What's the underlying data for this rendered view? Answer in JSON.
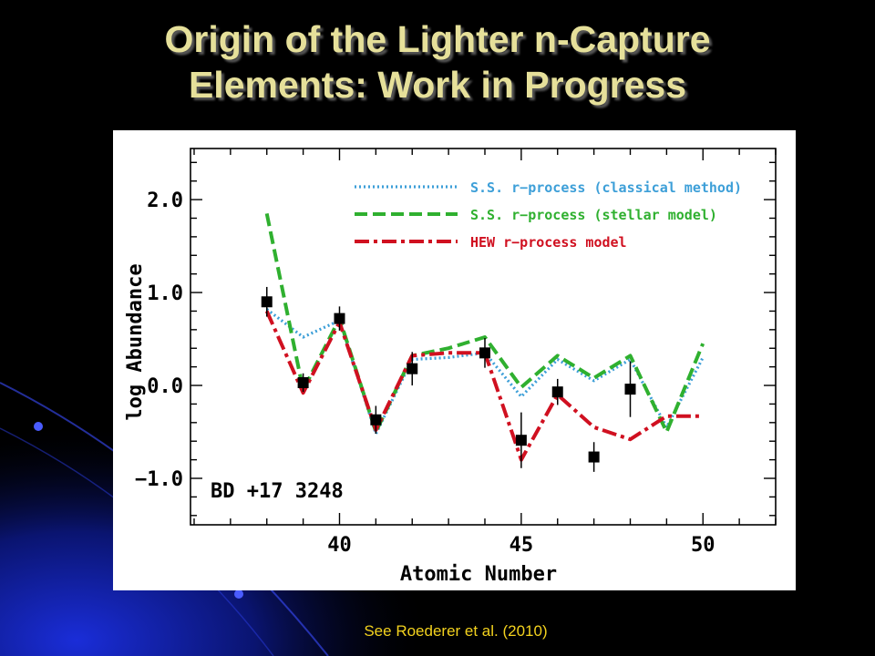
{
  "slide": {
    "title_line1": "Origin of the Lighter n-Capture",
    "title_line2": "Elements: Work in Progress",
    "footer": "See Roederer et al. (2010)",
    "title_color": "#e6e09a",
    "footer_color": "#f3d21e"
  },
  "chart_data": {
    "type": "line",
    "xlabel": "Atomic Number",
    "ylabel": "log Abundance",
    "xlim": [
      35.9,
      52.0
    ],
    "ylim": [
      -1.5,
      2.55
    ],
    "x_ticks": [
      40,
      45,
      50
    ],
    "y_ticks": [
      2.0,
      1.0,
      0.0,
      -1.0
    ],
    "y_tick_labels": [
      "2.0",
      "1.0",
      "0.0",
      "−1.0"
    ],
    "star_label": "BD +17 3248",
    "grid": false,
    "legend_position": "top-right",
    "series": [
      {
        "name": "S.S. r−process (classical method)",
        "style": "dotted",
        "color": "#3d9fd8",
        "x": [
          38,
          39,
          40,
          41,
          42,
          43,
          44,
          45,
          46,
          47,
          48,
          49,
          50
        ],
        "values": [
          0.82,
          0.52,
          0.7,
          -0.52,
          0.28,
          0.3,
          0.35,
          -0.12,
          0.28,
          0.05,
          0.28,
          -0.45,
          0.3
        ]
      },
      {
        "name": "S.S. r−process (stellar model)",
        "style": "dashed",
        "color": "#2fb02f",
        "x": [
          38,
          39,
          40,
          41,
          42,
          43,
          44,
          45,
          46,
          47,
          48,
          49,
          50
        ],
        "values": [
          1.85,
          -0.05,
          0.72,
          -0.5,
          0.32,
          0.4,
          0.52,
          -0.02,
          0.32,
          0.08,
          0.32,
          -0.5,
          0.45
        ]
      },
      {
        "name": "HEW r−process model",
        "style": "dash-dot",
        "color": "#d01020",
        "x": [
          38,
          39,
          40,
          41,
          42,
          43,
          44,
          45,
          46,
          47,
          48,
          49,
          50
        ],
        "values": [
          0.8,
          -0.08,
          0.68,
          -0.48,
          0.32,
          0.35,
          0.35,
          -0.8,
          -0.1,
          -0.45,
          -0.58,
          -0.33,
          -0.33
        ]
      },
      {
        "name": "",
        "style": "markers",
        "color": "#000000",
        "x": [
          38,
          39,
          40,
          41,
          42,
          44,
          45,
          46,
          47,
          48
        ],
        "values": [
          0.9,
          0.03,
          0.72,
          -0.37,
          0.18,
          0.35,
          -0.59,
          -0.07,
          -0.77,
          -0.04
        ],
        "errors": [
          0.16,
          0.1,
          0.13,
          0.15,
          0.18,
          0.16,
          0.3,
          0.14,
          0.16,
          0.3
        ]
      }
    ]
  }
}
